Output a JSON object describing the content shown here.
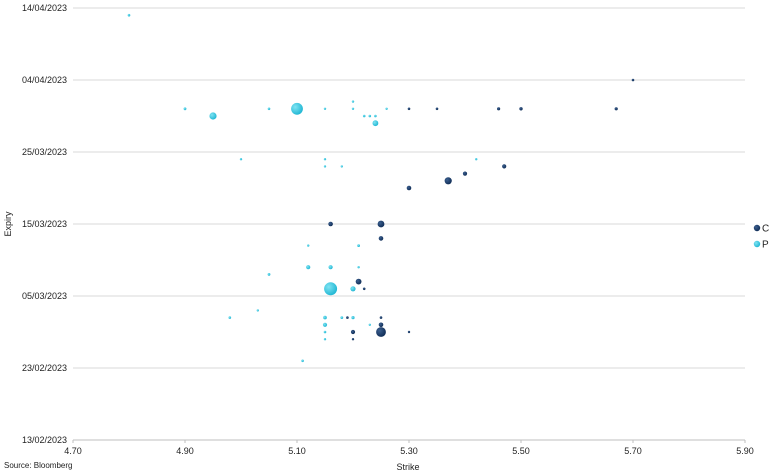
{
  "chart_data": {
    "type": "scatter",
    "title": "",
    "xlabel": "Strike",
    "ylabel": "Expiry",
    "xlim": [
      4.7,
      5.9
    ],
    "ylim": [
      "2023-02-13",
      "2023-04-14"
    ],
    "x_ticks": [
      "4.70",
      "4.90",
      "5.10",
      "5.30",
      "5.50",
      "5.70",
      "5.90"
    ],
    "y_ticks": [
      "13/02/2023",
      "23/02/2023",
      "05/03/2023",
      "15/03/2023",
      "25/03/2023",
      "04/04/2023",
      "14/04/2023"
    ],
    "grid": "horizontal",
    "legend_position": "right",
    "source": "Source: Bloomberg",
    "series": [
      {
        "name": "C",
        "color": "#0f2c55",
        "points": [
          {
            "x": 5.7,
            "y": "2023-04-04",
            "size": 1
          },
          {
            "x": 5.3,
            "y": "2023-03-31",
            "size": 1
          },
          {
            "x": 5.35,
            "y": "2023-03-31",
            "size": 1
          },
          {
            "x": 5.46,
            "y": "2023-03-31",
            "size": 1.2
          },
          {
            "x": 5.5,
            "y": "2023-03-31",
            "size": 1.3
          },
          {
            "x": 5.67,
            "y": "2023-03-31",
            "size": 1.2
          },
          {
            "x": 5.47,
            "y": "2023-03-23",
            "size": 1.6
          },
          {
            "x": 5.4,
            "y": "2023-03-22",
            "size": 1.6
          },
          {
            "x": 5.37,
            "y": "2023-03-21",
            "size": 2.8
          },
          {
            "x": 5.3,
            "y": "2023-03-20",
            "size": 1.8
          },
          {
            "x": 5.16,
            "y": "2023-03-15",
            "size": 1.8
          },
          {
            "x": 5.25,
            "y": "2023-03-15",
            "size": 2.6
          },
          {
            "x": 5.25,
            "y": "2023-03-13",
            "size": 1.8
          },
          {
            "x": 5.21,
            "y": "2023-03-07",
            "size": 2.2
          },
          {
            "x": 5.22,
            "y": "2023-03-06",
            "size": 1
          },
          {
            "x": 5.2,
            "y": "2023-03-06",
            "size": 1
          },
          {
            "x": 5.19,
            "y": "2023-03-02",
            "size": 1
          },
          {
            "x": 5.2,
            "y": "2023-03-02",
            "size": 1
          },
          {
            "x": 5.25,
            "y": "2023-03-02",
            "size": 1
          },
          {
            "x": 5.25,
            "y": "2023-03-01",
            "size": 1.8
          },
          {
            "x": 5.2,
            "y": "2023-02-28",
            "size": 1.6
          },
          {
            "x": 5.25,
            "y": "2023-02-28",
            "size": 3.8
          },
          {
            "x": 5.3,
            "y": "2023-02-28",
            "size": 0.8
          },
          {
            "x": 5.2,
            "y": "2023-02-27",
            "size": 0.9
          }
        ]
      },
      {
        "name": "P",
        "color": "#1fb6d3",
        "points": [
          {
            "x": 4.8,
            "y": "2023-04-13",
            "size": 1
          },
          {
            "x": 5.2,
            "y": "2023-04-01",
            "size": 0.7
          },
          {
            "x": 4.9,
            "y": "2023-03-31",
            "size": 1.1
          },
          {
            "x": 5.05,
            "y": "2023-03-31",
            "size": 1
          },
          {
            "x": 5.1,
            "y": "2023-03-31",
            "size": 4.5
          },
          {
            "x": 5.15,
            "y": "2023-03-31",
            "size": 0.8
          },
          {
            "x": 5.2,
            "y": "2023-03-31",
            "size": 0.6
          },
          {
            "x": 5.26,
            "y": "2023-03-31",
            "size": 0.6
          },
          {
            "x": 4.95,
            "y": "2023-03-30",
            "size": 2.8
          },
          {
            "x": 5.22,
            "y": "2023-03-30",
            "size": 1
          },
          {
            "x": 5.23,
            "y": "2023-03-30",
            "size": 1
          },
          {
            "x": 5.24,
            "y": "2023-03-30",
            "size": 1
          },
          {
            "x": 5.24,
            "y": "2023-03-29",
            "size": 2.2
          },
          {
            "x": 5.0,
            "y": "2023-03-24",
            "size": 0.8
          },
          {
            "x": 5.15,
            "y": "2023-03-24",
            "size": 0.7
          },
          {
            "x": 5.15,
            "y": "2023-03-23",
            "size": 0.8
          },
          {
            "x": 5.18,
            "y": "2023-03-23",
            "size": 0.5
          },
          {
            "x": 5.42,
            "y": "2023-03-24",
            "size": 0.5
          },
          {
            "x": 5.12,
            "y": "2023-03-12",
            "size": 0.8
          },
          {
            "x": 5.21,
            "y": "2023-03-12",
            "size": 1.1
          },
          {
            "x": 5.12,
            "y": "2023-03-09",
            "size": 1.6
          },
          {
            "x": 5.16,
            "y": "2023-03-09",
            "size": 1.6
          },
          {
            "x": 5.21,
            "y": "2023-03-09",
            "size": 0.8
          },
          {
            "x": 5.05,
            "y": "2023-03-08",
            "size": 1.1
          },
          {
            "x": 5.16,
            "y": "2023-03-06",
            "size": 5
          },
          {
            "x": 5.2,
            "y": "2023-03-06",
            "size": 2
          },
          {
            "x": 5.03,
            "y": "2023-03-03",
            "size": 0.9
          },
          {
            "x": 4.98,
            "y": "2023-03-02",
            "size": 1
          },
          {
            "x": 5.15,
            "y": "2023-03-02",
            "size": 1.4
          },
          {
            "x": 5.18,
            "y": "2023-03-02",
            "size": 1.1
          },
          {
            "x": 5.2,
            "y": "2023-03-02",
            "size": 1.2
          },
          {
            "x": 5.15,
            "y": "2023-03-01",
            "size": 1.6
          },
          {
            "x": 5.23,
            "y": "2023-03-01",
            "size": 0.6
          },
          {
            "x": 5.15,
            "y": "2023-02-28",
            "size": 1
          },
          {
            "x": 5.15,
            "y": "2023-02-27",
            "size": 0.8
          },
          {
            "x": 5.11,
            "y": "2023-02-24",
            "size": 1
          }
        ]
      }
    ]
  }
}
